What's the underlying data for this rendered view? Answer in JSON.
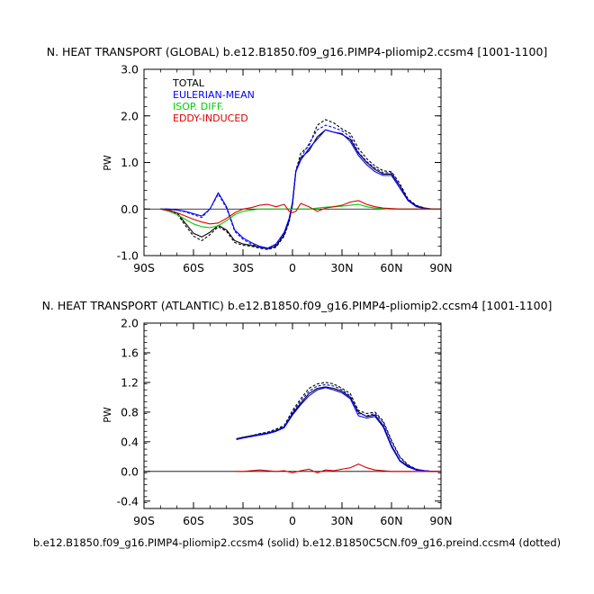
{
  "footer": "b.e12.B1850.f09_g16.PIMP4-pliomip2.ccsm4 (solid) b.e12.B1850C5CN.f09_g16.preind.ccsm4 (dotted)",
  "colors": {
    "total": "#000000",
    "eulerian": "#0000ff",
    "isop": "#00cc00",
    "eddy": "#dd0000"
  },
  "chart_data": [
    {
      "type": "line",
      "title": "N. HEAT TRANSPORT (GLOBAL) b.e12.B1850.f09_g16.PIMP4-pliomip2.ccsm4 [1001-1100]",
      "xlabel": "",
      "ylabel": "PW",
      "xlim": [
        -90,
        90
      ],
      "ylim": [
        -1.0,
        3.0
      ],
      "xticks": [
        -90,
        -60,
        -30,
        0,
        30,
        60,
        90
      ],
      "xtick_labels": [
        "90S",
        "60S",
        "30S",
        "0",
        "30N",
        "60N",
        "90N"
      ],
      "yticks": [
        -1.0,
        0.0,
        1.0,
        2.0,
        3.0
      ],
      "ytick_labels": [
        "-1.0",
        "0.0",
        "1.0",
        "2.0",
        "3.0"
      ],
      "legend": [
        "TOTAL",
        "EULERIAN-MEAN",
        "ISOP. DIFF.",
        "EDDY-INDUCED"
      ],
      "series": [
        {
          "name": "TOTAL",
          "style": "solid",
          "color": "total",
          "x": [
            -80,
            -75,
            -70,
            -65,
            -60,
            -55,
            -50,
            -45,
            -40,
            -35,
            -30,
            -25,
            -20,
            -15,
            -10,
            -5,
            -2,
            0,
            2,
            5,
            10,
            15,
            20,
            25,
            30,
            35,
            40,
            45,
            50,
            55,
            60,
            65,
            70,
            75,
            80,
            85,
            90
          ],
          "y": [
            0,
            -0.02,
            -0.08,
            -0.3,
            -0.52,
            -0.6,
            -0.5,
            -0.35,
            -0.45,
            -0.68,
            -0.75,
            -0.78,
            -0.82,
            -0.85,
            -0.8,
            -0.55,
            -0.25,
            0.1,
            0.8,
            1.1,
            1.25,
            1.55,
            1.7,
            1.65,
            1.6,
            1.5,
            1.2,
            1.0,
            0.85,
            0.75,
            0.75,
            0.5,
            0.2,
            0.07,
            0.02,
            0,
            0
          ]
        },
        {
          "name": "TOTAL (control)",
          "style": "dotted",
          "color": "total",
          "x": [
            -80,
            -75,
            -70,
            -65,
            -60,
            -55,
            -50,
            -45,
            -40,
            -35,
            -30,
            -25,
            -20,
            -15,
            -10,
            -5,
            -2,
            0,
            2,
            5,
            10,
            15,
            20,
            25,
            30,
            35,
            40,
            45,
            50,
            55,
            60,
            65,
            70,
            75,
            80,
            85,
            90
          ],
          "y": [
            0,
            -0.03,
            -0.1,
            -0.35,
            -0.58,
            -0.68,
            -0.55,
            -0.38,
            -0.48,
            -0.72,
            -0.78,
            -0.8,
            -0.84,
            -0.87,
            -0.82,
            -0.58,
            -0.28,
            0.1,
            0.82,
            1.2,
            1.35,
            1.8,
            1.92,
            1.85,
            1.72,
            1.62,
            1.3,
            1.08,
            0.92,
            0.82,
            0.8,
            0.55,
            0.22,
            0.08,
            0.02,
            0,
            0
          ]
        },
        {
          "name": "EULERIAN-MEAN",
          "style": "solid",
          "color": "eulerian",
          "x": [
            -80,
            -75,
            -70,
            -65,
            -60,
            -55,
            -50,
            -45,
            -40,
            -35,
            -30,
            -25,
            -20,
            -15,
            -10,
            -5,
            -2,
            0,
            2,
            5,
            10,
            15,
            20,
            25,
            30,
            35,
            40,
            45,
            50,
            55,
            60,
            65,
            70,
            75,
            80,
            85,
            90
          ],
          "y": [
            0,
            0,
            -0.02,
            -0.05,
            -0.1,
            -0.15,
            0,
            0.35,
            0.05,
            -0.45,
            -0.62,
            -0.72,
            -0.8,
            -0.84,
            -0.75,
            -0.5,
            -0.2,
            0.15,
            0.8,
            1.05,
            1.3,
            1.5,
            1.7,
            1.65,
            1.62,
            1.45,
            1.15,
            0.95,
            0.8,
            0.72,
            0.72,
            0.45,
            0.18,
            0.05,
            0.01,
            0,
            0
          ]
        },
        {
          "name": "EULERIAN-MEAN (control)",
          "style": "dotted",
          "color": "eulerian",
          "x": [
            -80,
            -75,
            -70,
            -65,
            -60,
            -55,
            -50,
            -45,
            -40,
            -35,
            -30,
            -25,
            -20,
            -15,
            -10,
            -5,
            -2,
            0,
            2,
            5,
            10,
            15,
            20,
            25,
            30,
            35,
            40,
            45,
            50,
            55,
            60,
            65,
            70,
            75,
            80,
            85,
            90
          ],
          "y": [
            0,
            0,
            -0.02,
            -0.06,
            -0.12,
            -0.18,
            0,
            0.32,
            0.02,
            -0.48,
            -0.65,
            -0.75,
            -0.82,
            -0.86,
            -0.77,
            -0.52,
            -0.22,
            0.15,
            0.82,
            1.1,
            1.4,
            1.7,
            1.8,
            1.75,
            1.68,
            1.55,
            1.22,
            1.02,
            0.88,
            0.78,
            0.78,
            0.5,
            0.2,
            0.06,
            0.01,
            0,
            0
          ]
        },
        {
          "name": "ISOP. DIFF.",
          "style": "solid",
          "color": "isop",
          "x": [
            -80,
            -75,
            -70,
            -65,
            -60,
            -55,
            -50,
            -45,
            -40,
            -35,
            -30,
            -25,
            -20,
            -15,
            -10,
            -5,
            0,
            5,
            10,
            15,
            20,
            25,
            30,
            35,
            40,
            45,
            50,
            55,
            60,
            65,
            70,
            75,
            80,
            85,
            90
          ],
          "y": [
            0,
            -0.05,
            -0.12,
            -0.22,
            -0.32,
            -0.38,
            -0.4,
            -0.36,
            -0.25,
            -0.12,
            -0.05,
            -0.02,
            0,
            0,
            0,
            0,
            0,
            0,
            0,
            0.02,
            0.04,
            0.05,
            0.06,
            0.08,
            0.1,
            0.05,
            0.02,
            0.01,
            0,
            0,
            0,
            0,
            0,
            0,
            0
          ]
        },
        {
          "name": "EDDY-INDUCED",
          "style": "solid",
          "color": "eddy",
          "x": [
            -80,
            -75,
            -70,
            -65,
            -60,
            -55,
            -50,
            -45,
            -40,
            -35,
            -30,
            -25,
            -20,
            -15,
            -10,
            -5,
            -2,
            0,
            2,
            5,
            10,
            15,
            20,
            25,
            30,
            35,
            40,
            45,
            50,
            55,
            60,
            65,
            70,
            75,
            80,
            85,
            90
          ],
          "y": [
            0,
            -0.03,
            -0.08,
            -0.15,
            -0.22,
            -0.28,
            -0.32,
            -0.3,
            -0.2,
            -0.08,
            0,
            0.03,
            0.08,
            0.1,
            0.05,
            0.1,
            -0.05,
            -0.08,
            -0.05,
            0.12,
            0.05,
            -0.05,
            0.02,
            0.05,
            0.08,
            0.15,
            0.18,
            0.1,
            0.05,
            0.02,
            0.01,
            0,
            0,
            0,
            0,
            0,
            0
          ]
        }
      ]
    },
    {
      "type": "line",
      "title": "N. HEAT TRANSPORT (ATLANTIC) b.e12.B1850.f09_g16.PIMP4-pliomip2.ccsm4 [1001-1100]",
      "xlabel": "",
      "ylabel": "PW",
      "xlim": [
        -90,
        90
      ],
      "ylim": [
        -0.5,
        2.0
      ],
      "xticks": [
        -90,
        -60,
        -30,
        0,
        30,
        60,
        90
      ],
      "xtick_labels": [
        "90S",
        "60S",
        "30S",
        "0",
        "30N",
        "60N",
        "90N"
      ],
      "yticks": [
        -0.4,
        0.0,
        0.4,
        0.8,
        1.2,
        1.6,
        2.0
      ],
      "ytick_labels": [
        "-0.4",
        "0.0",
        "0.4",
        "0.8",
        "1.2",
        "1.6",
        "2.0"
      ],
      "series": [
        {
          "name": "TOTAL",
          "style": "solid",
          "color": "total",
          "x": [
            -34,
            -30,
            -25,
            -20,
            -15,
            -10,
            -5,
            0,
            5,
            10,
            15,
            20,
            25,
            30,
            35,
            40,
            45,
            50,
            55,
            60,
            65,
            70,
            75,
            80,
            85,
            90
          ],
          "y": [
            0.44,
            0.46,
            0.48,
            0.5,
            0.52,
            0.55,
            0.6,
            0.78,
            0.92,
            1.05,
            1.12,
            1.14,
            1.12,
            1.08,
            1.0,
            0.8,
            0.74,
            0.76,
            0.62,
            0.35,
            0.15,
            0.07,
            0.02,
            0.01,
            0,
            0
          ]
        },
        {
          "name": "TOTAL (control)",
          "style": "dotted",
          "color": "total",
          "x": [
            -34,
            -30,
            -25,
            -20,
            -15,
            -10,
            -5,
            0,
            5,
            10,
            15,
            20,
            25,
            30,
            35,
            40,
            45,
            50,
            55,
            60,
            65,
            70,
            75,
            80,
            85,
            90
          ],
          "y": [
            0.44,
            0.46,
            0.48,
            0.51,
            0.53,
            0.57,
            0.62,
            0.82,
            0.98,
            1.12,
            1.18,
            1.2,
            1.18,
            1.12,
            1.05,
            0.82,
            0.78,
            0.8,
            0.68,
            0.42,
            0.2,
            0.09,
            0.03,
            0.01,
            0,
            0
          ]
        },
        {
          "name": "EULERIAN-MEAN",
          "style": "solid",
          "color": "eulerian",
          "x": [
            -34,
            -30,
            -25,
            -20,
            -15,
            -10,
            -5,
            0,
            5,
            10,
            15,
            20,
            25,
            30,
            35,
            40,
            45,
            50,
            55,
            60,
            65,
            70,
            75,
            80,
            85,
            90
          ],
          "y": [
            0.43,
            0.45,
            0.47,
            0.49,
            0.51,
            0.54,
            0.59,
            0.76,
            0.9,
            1.02,
            1.1,
            1.13,
            1.1,
            1.06,
            0.98,
            0.75,
            0.72,
            0.74,
            0.6,
            0.33,
            0.14,
            0.06,
            0.02,
            0.01,
            0,
            0
          ]
        },
        {
          "name": "EULERIAN-MEAN (control)",
          "style": "dotted",
          "color": "eulerian",
          "x": [
            -34,
            -30,
            -25,
            -20,
            -15,
            -10,
            -5,
            0,
            5,
            10,
            15,
            20,
            25,
            30,
            35,
            40,
            45,
            50,
            55,
            60,
            65,
            70,
            75,
            80,
            85,
            90
          ],
          "y": [
            0.43,
            0.45,
            0.47,
            0.5,
            0.52,
            0.56,
            0.61,
            0.8,
            0.95,
            1.08,
            1.15,
            1.17,
            1.15,
            1.1,
            1.02,
            0.78,
            0.75,
            0.78,
            0.66,
            0.4,
            0.19,
            0.08,
            0.03,
            0.01,
            0,
            0
          ]
        },
        {
          "name": "EDDY-INDUCED",
          "style": "solid",
          "color": "eddy",
          "x": [
            -34,
            -30,
            -25,
            -20,
            -15,
            -10,
            -5,
            0,
            5,
            10,
            15,
            20,
            25,
            30,
            35,
            40,
            45,
            50,
            55,
            60,
            65,
            70,
            75,
            80,
            85,
            90
          ],
          "y": [
            0,
            0,
            0.01,
            0.02,
            0.01,
            0,
            0.01,
            -0.02,
            0.01,
            0.03,
            -0.02,
            0.02,
            0.01,
            0.03,
            0.05,
            0.1,
            0.05,
            0.02,
            0.01,
            0,
            0,
            0,
            0,
            0,
            0,
            0
          ]
        }
      ]
    }
  ]
}
